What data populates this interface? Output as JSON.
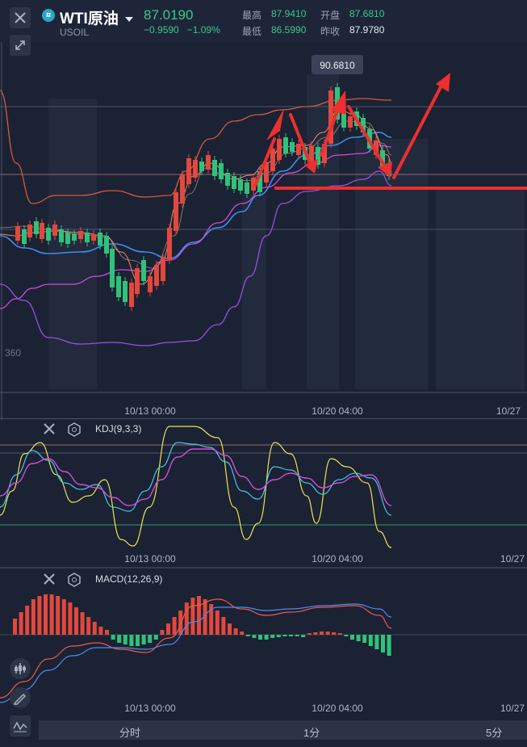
{
  "header": {
    "symbol_badge": "¤",
    "symbol_name": "WTI原油",
    "symbol_code": "USOIL",
    "price": "87.0190",
    "change": "−0.9590",
    "change_pct": "−1.09%",
    "high_label": "最高",
    "high_value": "87.9410",
    "open_label": "开盘",
    "open_value": "87.6810",
    "low_label": "最低",
    "low_value": "86.5990",
    "prev_close_label": "昨收",
    "prev_close_value": "87.9780"
  },
  "main_chart": {
    "peak_label": "90.6810",
    "left_price_label": "360",
    "x_ticks": [
      "10/13 00:00",
      "10/20 04:00",
      "10/27"
    ]
  },
  "kdj": {
    "title": "KDJ(9,3,3)",
    "x_ticks": [
      "10/13 00:00",
      "10/20 04:00",
      "10/27"
    ]
  },
  "macd": {
    "title": "MACD(12,26,9)",
    "x_ticks": [
      "10/13 00:00",
      "10/20 04:00",
      "10/27"
    ]
  },
  "timeframes": [
    "分时",
    "1分",
    "5分"
  ],
  "colors": {
    "up": "#e2483d",
    "down": "#30c27a",
    "kdj_k": "#e9e455",
    "kdj_d": "#48c7e6",
    "kdj_j": "#d24bd8",
    "boll_mid": "#3a8df0",
    "boll_upper": "#d7593f",
    "boll_lower": "#9b4ee0",
    "annotation": "#ec2f2f"
  },
  "icons": {
    "close": "close-icon",
    "expand": "expand-icon",
    "dropdown": "caret-down-icon",
    "settings": "hexagon-settings-icon",
    "candles": "candlestick-icon",
    "draw": "pencil-icon",
    "indicator": "wave-icon"
  }
}
